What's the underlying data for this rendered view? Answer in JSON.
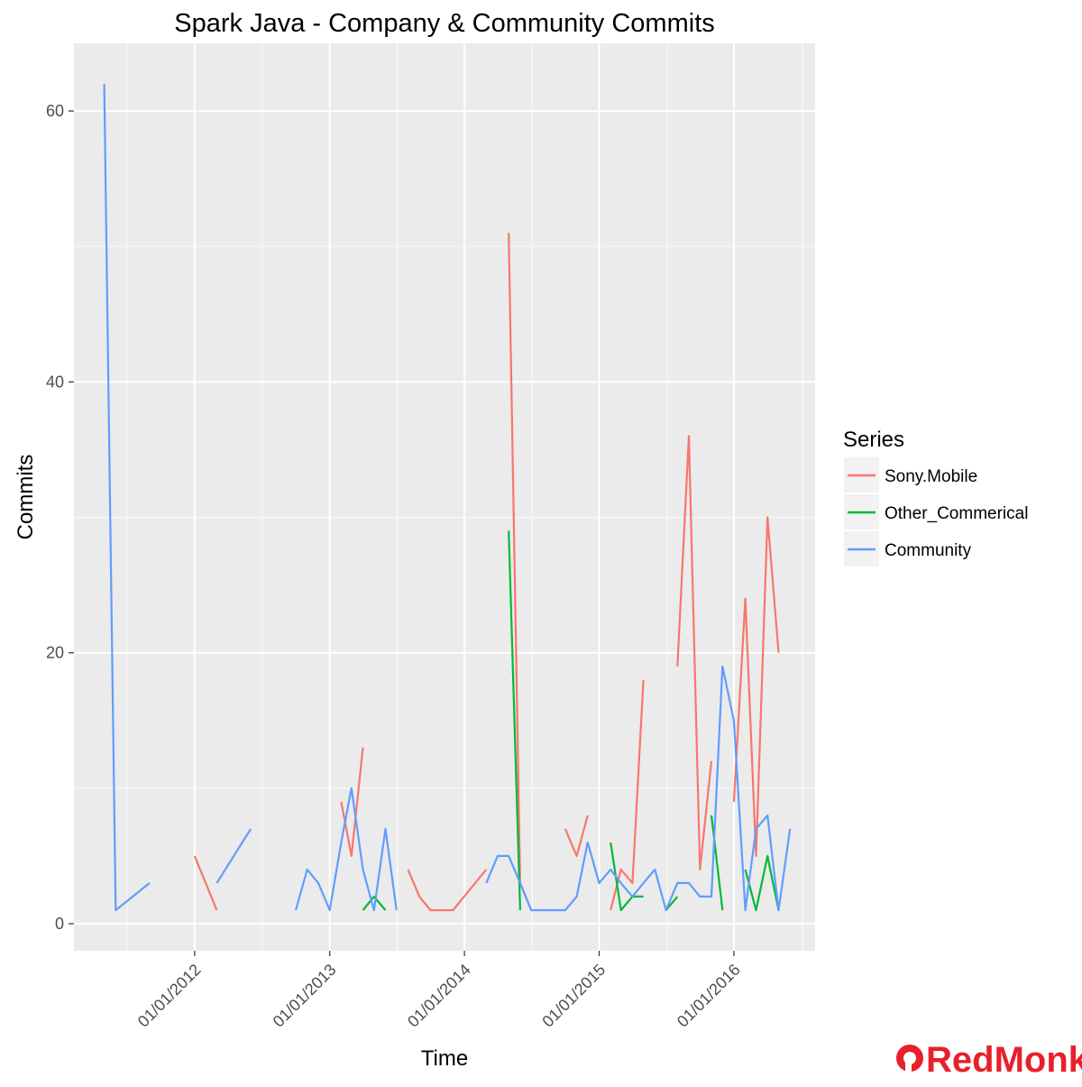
{
  "chart_data": {
    "type": "line",
    "title": "Spark Java - Company & Community Commits",
    "xlabel": "Time",
    "ylabel": "Commits",
    "x_ticks": [
      "01/01/2012",
      "01/01/2013",
      "01/01/2014",
      "01/01/2015",
      "01/01/2016"
    ],
    "y_ticks": [
      "0",
      "20",
      "40",
      "60"
    ],
    "xlim": [
      "2011-02-08",
      "2016-08-08"
    ],
    "ylim": [
      -2,
      65
    ],
    "grid": true,
    "legend_title": "Series",
    "legend_position": "right",
    "series": [
      {
        "name": "Sony.Mobile",
        "color": "#F8766D",
        "segments": [
          [
            [
              "2012-01-01",
              5
            ],
            [
              "2012-03-01",
              1
            ]
          ],
          [
            [
              "2013-02-01",
              9
            ],
            [
              "2013-03-01",
              5
            ],
            [
              "2013-04-01",
              13
            ]
          ],
          [
            [
              "2013-08-01",
              4
            ],
            [
              "2013-09-01",
              2
            ],
            [
              "2013-10-01",
              1
            ],
            [
              "2013-11-01",
              1
            ],
            [
              "2013-12-01",
              1
            ],
            [
              "2014-03-01",
              4
            ]
          ],
          [
            [
              "2014-05-01",
              51
            ],
            [
              "2014-06-01",
              3
            ],
            [
              "2014-07-01",
              1
            ]
          ],
          [
            [
              "2014-10-01",
              7
            ],
            [
              "2014-11-01",
              5
            ],
            [
              "2014-12-01",
              8
            ]
          ],
          [
            [
              "2015-02-01",
              1
            ],
            [
              "2015-03-01",
              4
            ],
            [
              "2015-04-01",
              3
            ],
            [
              "2015-05-01",
              18
            ]
          ],
          [
            [
              "2015-08-01",
              19
            ],
            [
              "2015-09-01",
              36
            ],
            [
              "2015-10-01",
              4
            ],
            [
              "2015-11-01",
              12
            ]
          ],
          [
            [
              "2016-01-01",
              9
            ],
            [
              "2016-02-01",
              24
            ],
            [
              "2016-03-01",
              5
            ],
            [
              "2016-04-01",
              30
            ],
            [
              "2016-05-01",
              20
            ]
          ]
        ]
      },
      {
        "name": "Other_Commerical",
        "color": "#00BA38",
        "segments": [
          [
            [
              "2013-04-01",
              1
            ],
            [
              "2013-05-01",
              2
            ],
            [
              "2013-06-01",
              1
            ]
          ],
          [
            [
              "2014-05-01",
              29
            ],
            [
              "2014-06-01",
              1
            ]
          ],
          [
            [
              "2015-02-01",
              6
            ],
            [
              "2015-03-01",
              1
            ],
            [
              "2015-04-01",
              2
            ],
            [
              "2015-05-01",
              2
            ]
          ],
          [
            [
              "2015-07-01",
              1
            ],
            [
              "2015-08-01",
              2
            ]
          ],
          [
            [
              "2015-11-01",
              8
            ],
            [
              "2015-12-01",
              1
            ]
          ],
          [
            [
              "2016-02-01",
              4
            ],
            [
              "2016-03-01",
              1
            ],
            [
              "2016-04-01",
              5
            ],
            [
              "2016-05-01",
              1
            ]
          ]
        ]
      },
      {
        "name": "Community",
        "color": "#619CFF",
        "segments": [
          [
            [
              "2011-05-01",
              62
            ],
            [
              "2011-06-01",
              1
            ],
            [
              "2011-09-01",
              3
            ]
          ],
          [
            [
              "2012-03-01",
              3
            ],
            [
              "2012-06-01",
              7
            ]
          ],
          [
            [
              "2012-10-01",
              1
            ],
            [
              "2012-11-01",
              4
            ],
            [
              "2012-12-01",
              3
            ],
            [
              "2013-01-01",
              1
            ],
            [
              "2013-02-01",
              6
            ],
            [
              "2013-03-01",
              10
            ],
            [
              "2013-04-01",
              4
            ],
            [
              "2013-05-01",
              1
            ],
            [
              "2013-06-01",
              7
            ],
            [
              "2013-07-01",
              1
            ]
          ],
          [
            [
              "2014-03-01",
              3
            ],
            [
              "2014-04-01",
              5
            ],
            [
              "2014-05-01",
              5
            ],
            [
              "2014-06-01",
              3
            ],
            [
              "2014-07-01",
              1
            ],
            [
              "2014-08-01",
              1
            ],
            [
              "2014-09-01",
              1
            ],
            [
              "2014-10-01",
              1
            ],
            [
              "2014-11-01",
              2
            ],
            [
              "2014-12-01",
              6
            ],
            [
              "2015-01-01",
              3
            ],
            [
              "2015-02-01",
              4
            ],
            [
              "2015-03-01",
              3
            ],
            [
              "2015-04-01",
              2
            ],
            [
              "2015-05-01",
              3
            ],
            [
              "2015-06-01",
              4
            ],
            [
              "2015-07-01",
              1
            ],
            [
              "2015-08-01",
              3
            ],
            [
              "2015-09-01",
              3
            ],
            [
              "2015-10-01",
              2
            ],
            [
              "2015-11-01",
              2
            ],
            [
              "2015-12-01",
              19
            ],
            [
              "2016-01-01",
              15
            ],
            [
              "2016-02-01",
              1
            ],
            [
              "2016-03-01",
              7
            ],
            [
              "2016-04-01",
              8
            ],
            [
              "2016-05-01",
              1
            ],
            [
              "2016-06-01",
              7
            ]
          ]
        ]
      }
    ]
  },
  "brand": {
    "name": "RedMonk",
    "color": "#e8202a"
  }
}
